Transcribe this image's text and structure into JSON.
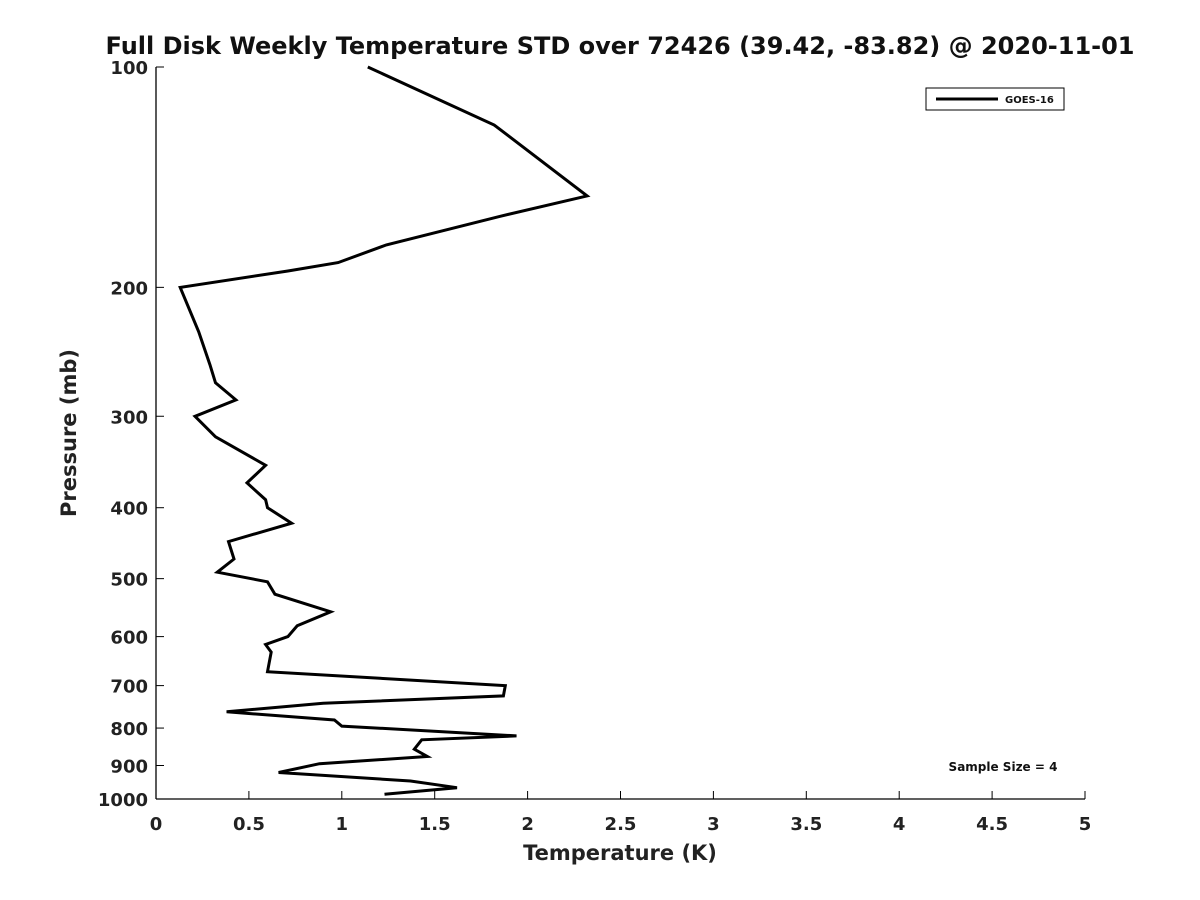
{
  "chart_data": {
    "type": "line",
    "title": "Full Disk Weekly Temperature STD over 72426 (39.42, -83.82) @ 2020-11-01",
    "xlabel": "Temperature (K)",
    "ylabel": "Pressure (mb)",
    "xlim": [
      0,
      5
    ],
    "ylim": [
      100,
      1000
    ],
    "y_scale": "log",
    "y_reversed": true,
    "x_ticks": [
      "0",
      "0.5",
      "1",
      "1.5",
      "2",
      "2.5",
      "3",
      "3.5",
      "4",
      "4.5",
      "5"
    ],
    "y_ticks": [
      "100",
      "200",
      "300",
      "400",
      "500",
      "600",
      "700",
      "800",
      "900",
      "1000"
    ],
    "grid": false,
    "legend": {
      "position": "top-right",
      "entries": [
        "GOES-16"
      ]
    },
    "annotation": "Sample Size = 4",
    "series": [
      {
        "name": "GOES-16",
        "color": "#000000",
        "x": [
          1.14,
          1.82,
          2.32,
          1.85,
          1.24,
          0.98,
          0.71,
          0.13,
          0.23,
          0.29,
          0.32,
          0.43,
          0.21,
          0.32,
          0.59,
          0.49,
          0.59,
          0.6,
          0.73,
          0.39,
          0.42,
          0.33,
          0.6,
          0.64,
          0.94,
          0.76,
          0.71,
          0.59,
          0.62,
          0.61,
          0.6,
          1.88,
          1.87,
          0.9,
          0.38,
          0.96,
          1.0,
          1.94,
          1.43,
          1.39,
          1.46,
          0.88,
          0.66,
          1.37,
          1.62,
          1.23
        ],
        "y": [
          100,
          120,
          150,
          160,
          175,
          185,
          190,
          200,
          230,
          255,
          270,
          285,
          300,
          320,
          350,
          370,
          390,
          400,
          420,
          445,
          470,
          490,
          505,
          525,
          555,
          580,
          600,
          615,
          630,
          650,
          670,
          700,
          723,
          740,
          760,
          780,
          795,
          820,
          830,
          855,
          875,
          895,
          920,
          945,
          965,
          985
        ]
      }
    ]
  }
}
